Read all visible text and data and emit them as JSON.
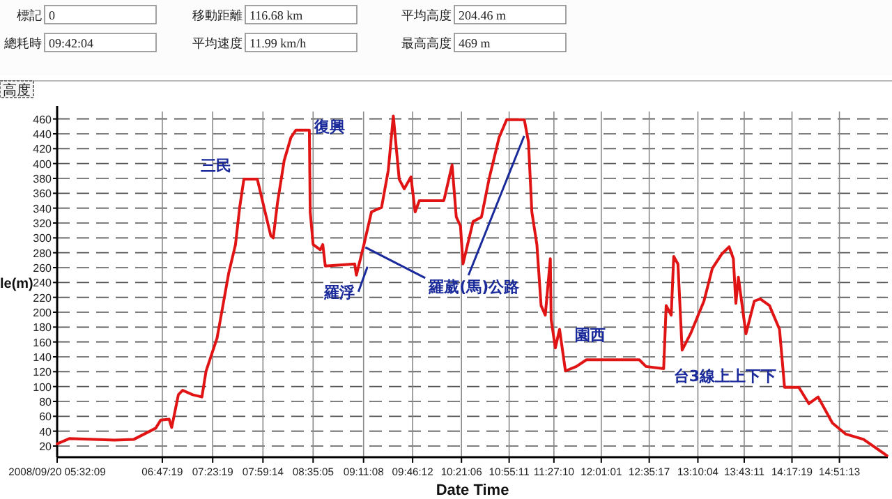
{
  "chart_data": {
    "type": "line",
    "xlabel": "Date Time",
    "ylabel": "le(m)",
    "xlim": [
      5.5358,
      15.43
    ],
    "ylim": [
      5,
      470
    ],
    "xticks": [
      {
        "value": 5.5358,
        "label": "2008/09/20 05:32:09"
      },
      {
        "value": 6.7886,
        "label": "06:47:19"
      },
      {
        "value": 7.3886,
        "label": "07:23:19"
      },
      {
        "value": 7.9872,
        "label": "07:59:14"
      },
      {
        "value": 8.5847,
        "label": "08:35:05"
      },
      {
        "value": 9.1856,
        "label": "09:11:08"
      },
      {
        "value": 9.77,
        "label": "09:46:12"
      },
      {
        "value": 10.3517,
        "label": "10:21:06"
      },
      {
        "value": 10.9197,
        "label": "10:55:11"
      },
      {
        "value": 11.4528,
        "label": "11:27:10"
      },
      {
        "value": 12.0169,
        "label": "12:01:01"
      },
      {
        "value": 12.5881,
        "label": "12:35:17"
      },
      {
        "value": 13.1678,
        "label": "13:10:04"
      },
      {
        "value": 13.7197,
        "label": "13:43:11"
      },
      {
        "value": 14.2886,
        "label": "14:17:19"
      },
      {
        "value": 14.8536,
        "label": "14:51:13"
      }
    ],
    "yticks": [
      20,
      40,
      60,
      80,
      100,
      120,
      140,
      160,
      180,
      200,
      220,
      240,
      260,
      280,
      300,
      320,
      340,
      360,
      380,
      400,
      420,
      440,
      460
    ],
    "grid": true,
    "marker": "none",
    "line_style": "solid",
    "series": [
      {
        "color": "#e01414",
        "x": [
          5.5358,
          5.68,
          6.22,
          6.45,
          6.71,
          6.77,
          6.87,
          6.9,
          6.98,
          7.03,
          7.15,
          7.26,
          7.31,
          7.44,
          7.52,
          7.58,
          7.66,
          7.71,
          7.76,
          7.92,
          8.0,
          8.08,
          8.11,
          8.16,
          8.24,
          8.32,
          8.38,
          8.54,
          8.55,
          8.585,
          8.67,
          8.7,
          8.73,
          9.08,
          9.1,
          9.19,
          9.28,
          9.4,
          9.48,
          9.54,
          9.61,
          9.67,
          9.75,
          9.8,
          9.85,
          10.14,
          10.15,
          10.24,
          10.29,
          10.34,
          10.37,
          10.49,
          10.59,
          10.68,
          10.8,
          10.89,
          11.1,
          11.15,
          11.19,
          11.25,
          11.3,
          11.35,
          11.41,
          11.42,
          11.47,
          11.52,
          11.59,
          11.72,
          11.84,
          12.47,
          12.55,
          12.76,
          12.79,
          12.85,
          12.88,
          12.93,
          12.98,
          13.08,
          13.24,
          13.34,
          13.45,
          13.54,
          13.59,
          13.62,
          13.65,
          13.74,
          13.84,
          13.91,
          14.02,
          14.14,
          14.2,
          14.37,
          14.49,
          14.6,
          14.77,
          14.93,
          15.14,
          15.42
        ],
        "values": [
          23,
          30,
          28,
          29,
          44,
          55,
          56,
          45,
          89,
          95,
          89,
          86,
          121,
          165,
          215,
          253,
          291,
          341,
          379,
          379,
          341,
          303,
          300,
          347,
          404,
          435,
          445,
          445,
          335,
          291,
          284,
          291,
          262,
          265,
          250,
          291,
          335,
          341,
          391,
          464,
          379,
          366,
          382,
          335,
          350,
          350,
          354,
          398,
          328,
          316,
          265,
          322,
          328,
          379,
          435,
          459,
          459,
          429,
          335,
          291,
          209,
          196,
          272,
          190,
          152,
          177,
          121,
          127,
          136,
          136,
          127,
          124,
          209,
          196,
          275,
          265,
          149,
          171,
          215,
          259,
          278,
          288,
          272,
          212,
          247,
          171,
          215,
          218,
          209,
          177,
          99,
          99,
          77,
          86,
          51,
          36,
          29,
          7
        ]
      }
    ],
    "annotations": [
      {
        "text": "三民",
        "x": 7.76,
        "y": 379
      },
      {
        "text": "復興",
        "x": 8.38,
        "y": 445
      },
      {
        "text": "羅浮",
        "x": 8.9,
        "y": 265
      },
      {
        "text": "羅葳(馬)公路",
        "x": 9.19,
        "y": 291
      },
      {
        "text": "園西",
        "x": 11.84,
        "y": 136
      },
      {
        "text": "台3線上上下下",
        "x": 12.76,
        "y": 124
      },
      "標記",
      "0",
      "移動距離",
      "116.68 km",
      "平均高度",
      "204.46 m",
      "總耗時",
      "09:42:04",
      "平均速度",
      "11.99 km/h",
      "最高高度",
      "469 m",
      "高度"
    ]
  }
}
